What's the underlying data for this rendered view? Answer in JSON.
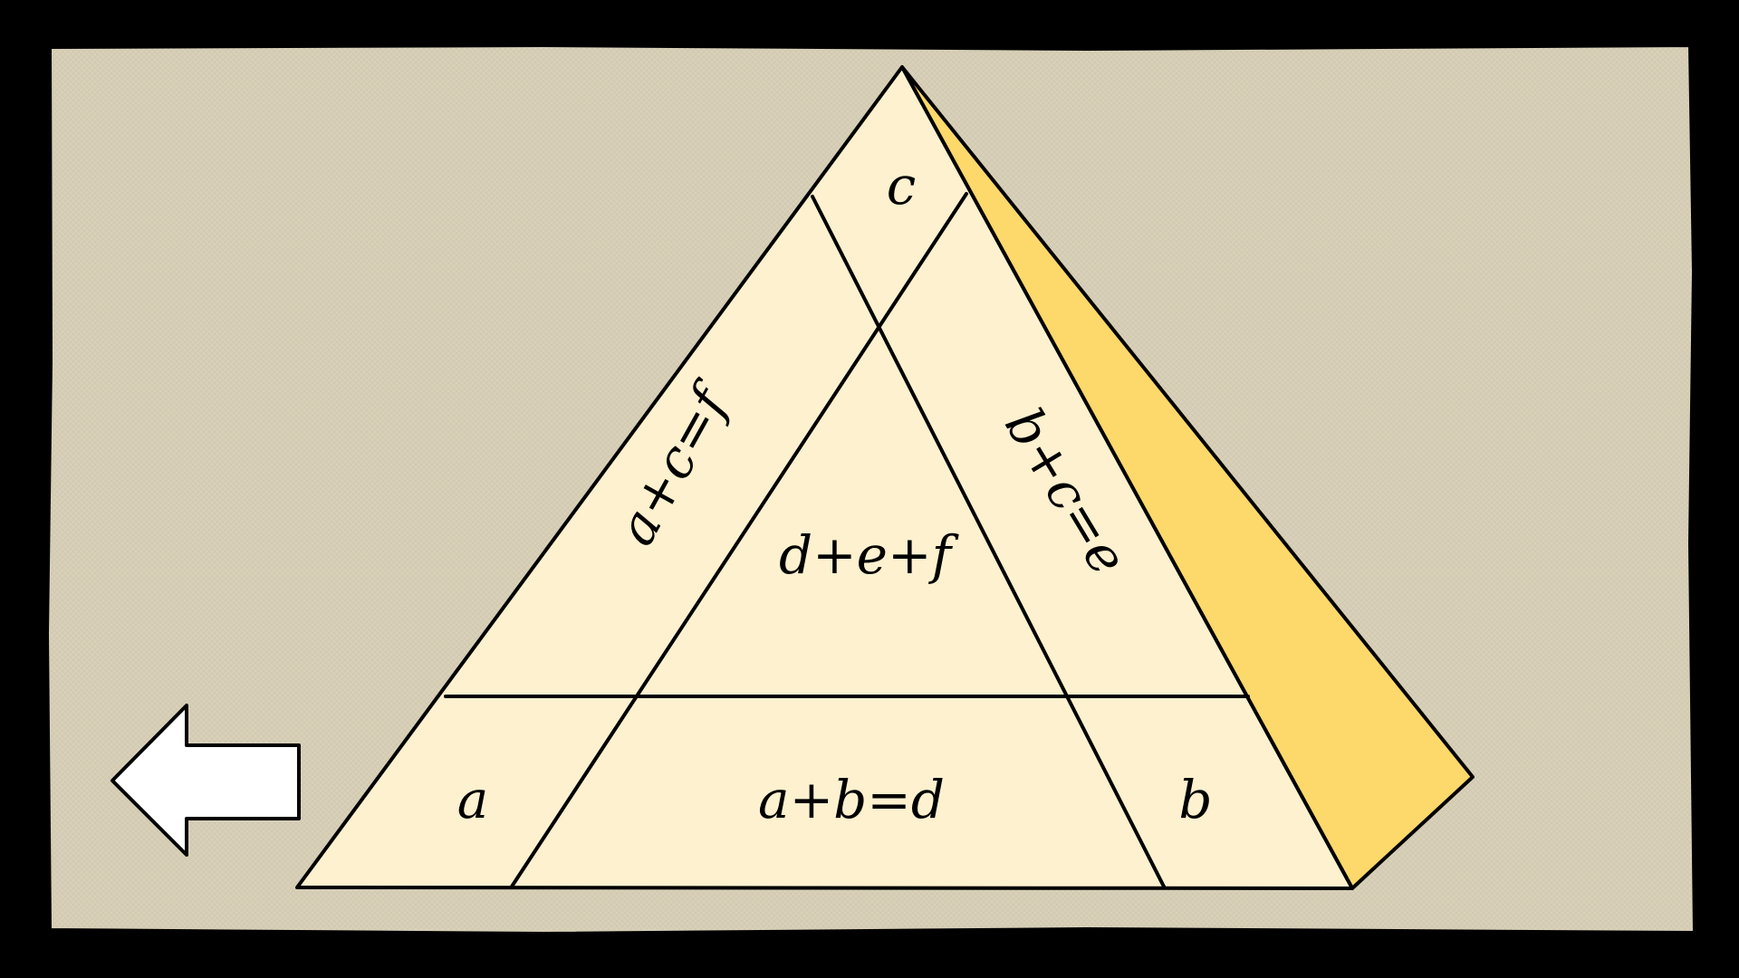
{
  "colors": {
    "frame": "#000000",
    "canvas": "#d8d0b8",
    "pyramid_face": "#fdf1cf",
    "pyramid_side": "#fdd86a",
    "stroke": "#000000",
    "arrow_fill": "#ffffff"
  },
  "pyramid": {
    "cells": {
      "top": "c",
      "left_side": "a+c=f",
      "right_side": "b+c=e",
      "center": "d+e+f",
      "bottom_left": "a",
      "bottom_middle": "a+b=d",
      "bottom_right": "b"
    }
  },
  "navigation": {
    "back_icon": "left-arrow-icon"
  }
}
